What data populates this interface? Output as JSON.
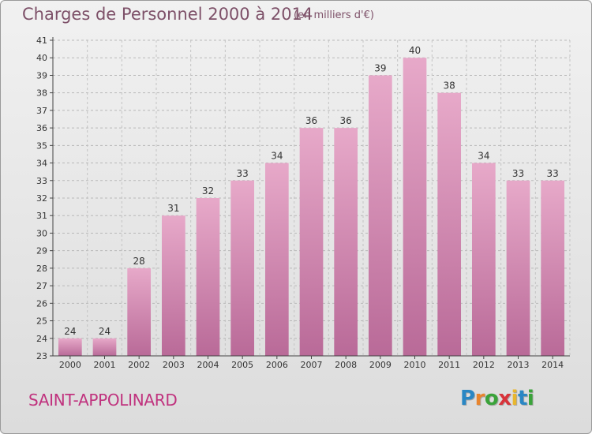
{
  "title": "Charges de Personnel 2000 à 2014",
  "subtitle": "(en milliers d'€)",
  "commune": "SAINT-APPOLINARD",
  "logo": {
    "text": "Proxiti",
    "letters": [
      "P",
      "r",
      "o",
      "x",
      "i",
      "t",
      "i"
    ],
    "colors": [
      "#2a87c4",
      "#e8852e",
      "#3aa33a",
      "#d8333a",
      "#e8b62e",
      "#2a87c4",
      "#3aa33a"
    ]
  },
  "colors": {
    "bar": "#c97aa6",
    "bar_top": "#e7a9c9",
    "axis": "#333333",
    "grid": "#bbbbbb"
  },
  "chart_data": {
    "type": "bar",
    "title": "Charges de Personnel 2000 à 2014",
    "subtitle": "(en milliers d'€)",
    "categories": [
      "2000",
      "2001",
      "2002",
      "2003",
      "2004",
      "2005",
      "2006",
      "2007",
      "2008",
      "2009",
      "2010",
      "2011",
      "2012",
      "2013",
      "2014"
    ],
    "values": [
      24,
      24,
      28,
      31,
      32,
      33,
      34,
      36,
      36,
      39,
      40,
      38,
      34,
      33,
      33
    ],
    "ylim": [
      23,
      41
    ],
    "yticks": [
      23,
      24,
      25,
      26,
      27,
      28,
      29,
      30,
      31,
      32,
      33,
      34,
      35,
      36,
      37,
      38,
      39,
      40,
      41
    ],
    "grid": true,
    "xlabel": "",
    "ylabel": ""
  }
}
